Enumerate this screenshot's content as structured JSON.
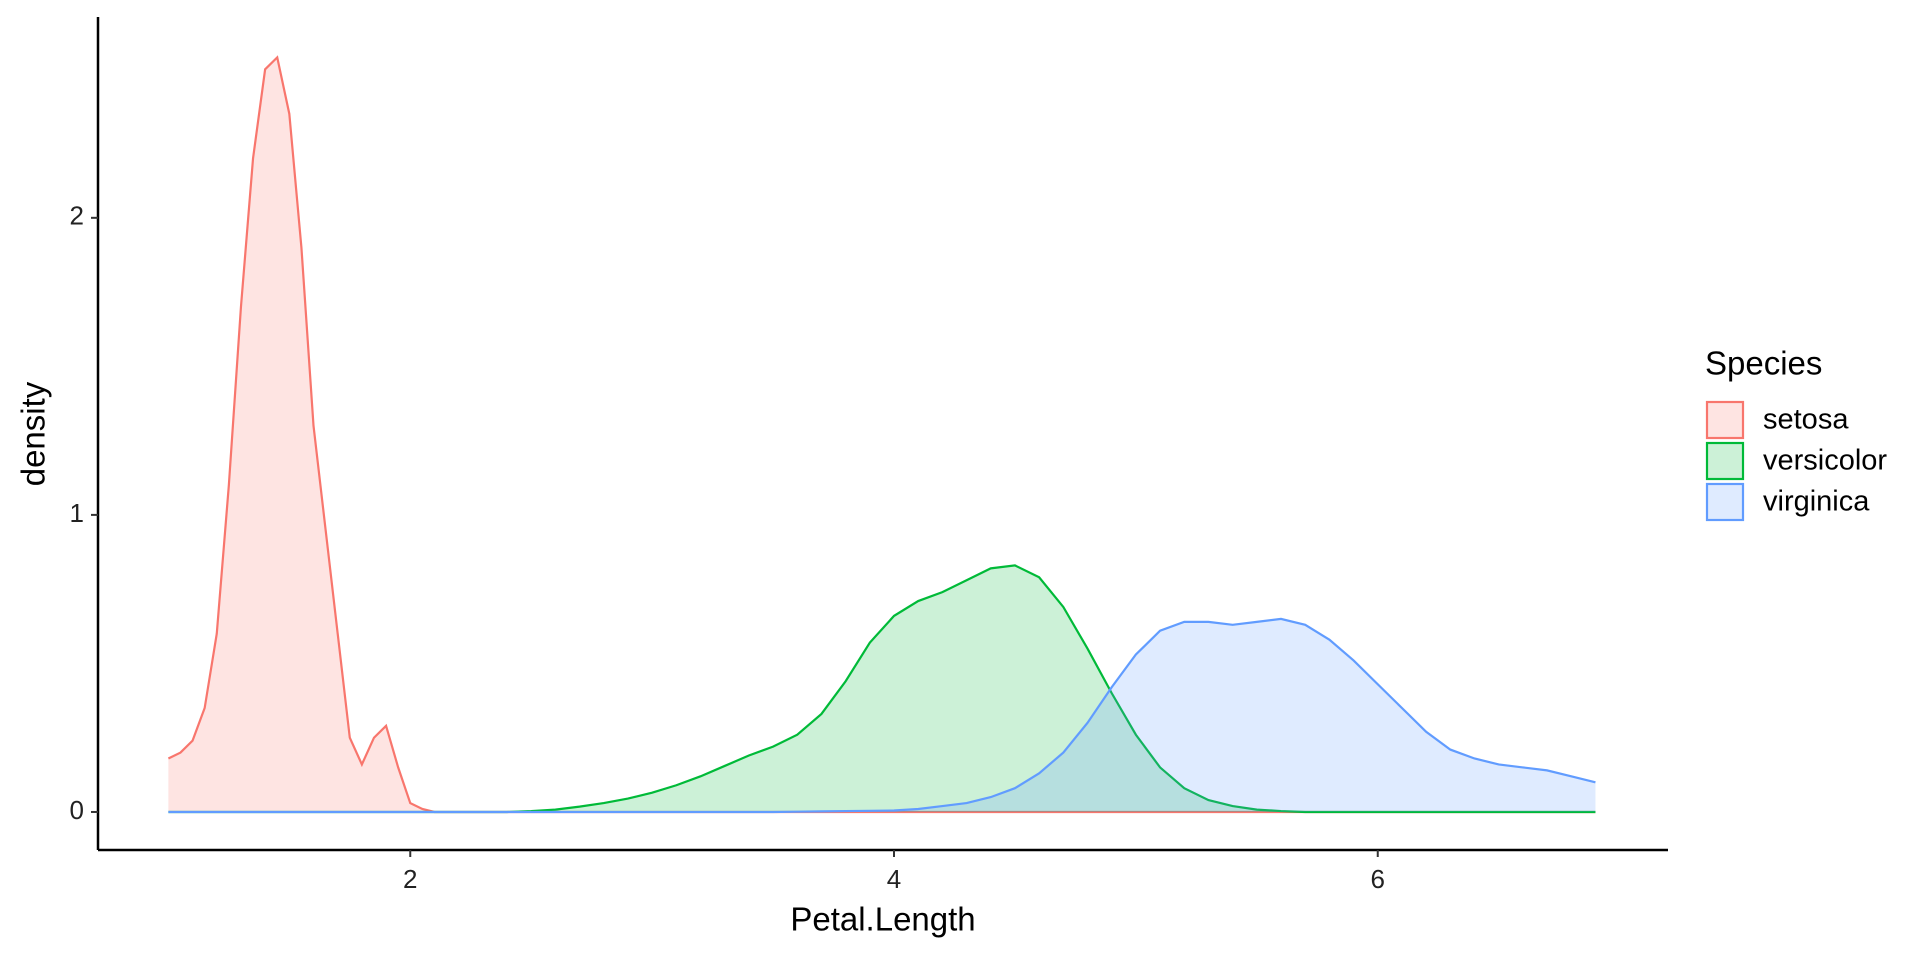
{
  "chart_data": {
    "type": "density",
    "x_label": "Petal.Length",
    "y_label": "density",
    "legend_title": "Species",
    "legend": "right",
    "x": [
      1.0,
      1.05,
      1.1,
      1.15,
      1.2,
      1.25,
      1.3,
      1.35,
      1.4,
      1.45,
      1.5,
      1.55,
      1.6,
      1.65,
      1.7,
      1.75,
      1.8,
      1.85,
      1.9,
      1.95,
      2.0,
      2.05,
      2.1,
      2.2,
      2.3,
      2.4,
      2.5,
      2.6,
      2.7,
      2.8,
      2.9,
      3.0,
      3.1,
      3.2,
      3.3,
      3.4,
      3.5,
      3.6,
      3.7,
      3.8,
      3.9,
      4.0,
      4.1,
      4.2,
      4.3,
      4.4,
      4.5,
      4.6,
      4.7,
      4.8,
      4.9,
      5.0,
      5.1,
      5.2,
      5.3,
      5.4,
      5.5,
      5.6,
      5.7,
      5.8,
      5.9,
      6.0,
      6.1,
      6.2,
      6.3,
      6.4,
      6.5,
      6.6,
      6.7,
      6.8,
      6.9
    ],
    "series": [
      {
        "name": "setosa",
        "color": "#F8766D",
        "values": [
          0.18,
          0.2,
          0.24,
          0.35,
          0.6,
          1.1,
          1.7,
          2.2,
          2.5,
          2.54,
          2.35,
          1.9,
          1.3,
          0.95,
          0.6,
          0.25,
          0.16,
          0.25,
          0.29,
          0.15,
          0.03,
          0.01,
          0,
          0,
          0,
          0,
          0,
          0,
          0,
          0,
          0,
          0,
          0,
          0,
          0,
          0,
          0,
          0,
          0,
          0,
          0,
          0,
          0,
          0,
          0,
          0,
          0,
          0,
          0,
          0,
          0,
          0,
          0,
          0,
          0,
          0,
          0,
          0,
          0,
          0,
          0,
          0,
          0,
          0,
          0,
          0,
          0,
          0,
          0,
          0,
          0
        ]
      },
      {
        "name": "versicolor",
        "color": "#00BA38",
        "values": [
          0,
          0,
          0,
          0,
          0,
          0,
          0,
          0,
          0,
          0,
          0,
          0,
          0,
          0,
          0,
          0,
          0,
          0,
          0,
          0,
          0,
          0,
          0,
          0,
          0,
          0,
          0.003,
          0.008,
          0.018,
          0.03,
          0.045,
          0.065,
          0.09,
          0.12,
          0.155,
          0.19,
          0.22,
          0.26,
          0.33,
          0.44,
          0.57,
          0.66,
          0.71,
          0.74,
          0.78,
          0.82,
          0.83,
          0.79,
          0.69,
          0.55,
          0.4,
          0.26,
          0.15,
          0.08,
          0.04,
          0.02,
          0.008,
          0.003,
          0,
          0,
          0,
          0,
          0,
          0,
          0,
          0,
          0,
          0,
          0,
          0,
          0
        ]
      },
      {
        "name": "virginica",
        "color": "#619CFF",
        "values": [
          0,
          0,
          0,
          0,
          0,
          0,
          0,
          0,
          0,
          0,
          0,
          0,
          0,
          0,
          0,
          0,
          0,
          0,
          0,
          0,
          0,
          0,
          0,
          0,
          0,
          0,
          0,
          0,
          0,
          0,
          0,
          0,
          0,
          0,
          0,
          0,
          0,
          0.001,
          0.002,
          0.003,
          0.004,
          0.005,
          0.01,
          0.02,
          0.03,
          0.05,
          0.08,
          0.13,
          0.2,
          0.3,
          0.42,
          0.53,
          0.61,
          0.64,
          0.64,
          0.63,
          0.64,
          0.65,
          0.63,
          0.58,
          0.51,
          0.43,
          0.35,
          0.27,
          0.21,
          0.18,
          0.16,
          0.15,
          0.14,
          0.12,
          0.1
        ]
      }
    ],
    "xlim": [
      0.709,
      7.2
    ],
    "xticks": [
      2,
      4,
      6
    ],
    "ylim": [
      -0.128,
      2.676
    ],
    "yticks": [
      0,
      1,
      2
    ],
    "fill_opacity": 0.2
  }
}
